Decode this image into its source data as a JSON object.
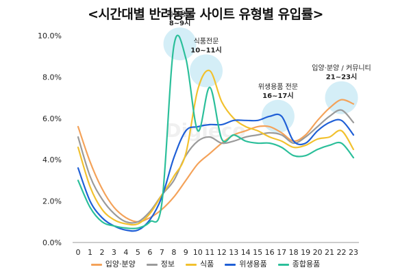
{
  "chart_data": {
    "type": "line",
    "title": "<시간대별 반려동물 사이트 유형별 유입률>",
    "xlabel": "",
    "ylabel": "",
    "x": [
      0,
      1,
      2,
      3,
      4,
      5,
      6,
      7,
      8,
      9,
      10,
      11,
      12,
      13,
      14,
      15,
      16,
      17,
      18,
      19,
      20,
      21,
      22,
      23
    ],
    "ylim": [
      0,
      10
    ],
    "y_ticks": [
      0,
      2,
      4,
      6,
      8,
      10
    ],
    "y_tick_labels": [
      "0.0%",
      "2.0%",
      "4.0%",
      "6.0%",
      "8.0%",
      "10.0%"
    ],
    "watermark": "Digieco",
    "series": [
      {
        "name": "입양·분양",
        "color": "#f4a259",
        "values": [
          5.6,
          3.9,
          2.6,
          1.7,
          1.2,
          1.0,
          1.2,
          1.6,
          2.2,
          3.0,
          3.8,
          4.3,
          4.8,
          5.2,
          5.4,
          5.6,
          5.6,
          5.3,
          4.9,
          5.2,
          5.9,
          6.5,
          6.9,
          6.7
        ]
      },
      {
        "name": "정보",
        "color": "#9a9a9a",
        "values": [
          5.1,
          3.2,
          2.1,
          1.4,
          1.0,
          1.0,
          1.5,
          2.3,
          3.0,
          4.2,
          4.9,
          5.1,
          4.8,
          4.9,
          5.1,
          5.2,
          5.3,
          5.2,
          4.8,
          5.1,
          5.6,
          6.1,
          6.4,
          5.8
        ]
      },
      {
        "name": "식품",
        "color": "#f2c12e",
        "values": [
          4.6,
          2.7,
          1.6,
          1.1,
          0.9,
          0.9,
          1.4,
          2.3,
          3.2,
          4.3,
          7.4,
          8.3,
          6.8,
          6.0,
          5.6,
          5.4,
          5.1,
          4.9,
          4.6,
          4.7,
          5.0,
          5.1,
          5.4,
          4.5
        ]
      },
      {
        "name": "위생용품",
        "color": "#1f5fd6",
        "values": [
          3.6,
          2.0,
          1.2,
          0.8,
          0.6,
          0.6,
          1.1,
          2.2,
          4.1,
          5.4,
          5.6,
          5.7,
          5.7,
          5.9,
          5.9,
          5.9,
          6.1,
          6.1,
          4.9,
          4.8,
          5.4,
          5.8,
          5.9,
          5.2
        ]
      },
      {
        "name": "종합용품",
        "color": "#2bbf9a",
        "values": [
          3.0,
          1.7,
          1.0,
          0.8,
          0.7,
          0.7,
          1.0,
          1.9,
          9.5,
          8.9,
          5.4,
          7.5,
          5.0,
          5.2,
          4.9,
          4.8,
          4.8,
          4.6,
          4.2,
          4.2,
          4.5,
          4.7,
          4.8,
          4.1
        ]
      }
    ],
    "annotations": [
      {
        "line1": "종합용품",
        "line2": "8~9시",
        "x": 8.5,
        "y": 9.6
      },
      {
        "line1": "식품전문",
        "line2": "10~11시",
        "x": 10.7,
        "y": 8.3
      },
      {
        "line1": "위생용품 전문",
        "line2": "16~17시",
        "x": 16.7,
        "y": 6.1
      },
      {
        "line1": "입양·분양 / 커뮤니티",
        "line2": "21~23시",
        "x": 22.0,
        "y": 7.0
      }
    ]
  }
}
